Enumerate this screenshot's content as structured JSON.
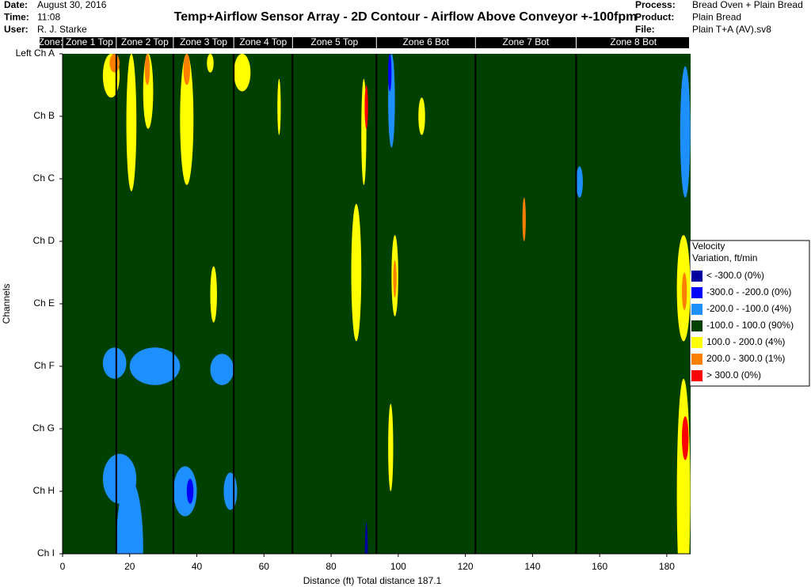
{
  "header": {
    "left": [
      {
        "key": "Date:",
        "value": "August 30, 2016"
      },
      {
        "key": "Time:",
        "value": "11:08"
      },
      {
        "key": "User:",
        "value": "R. J. Starke"
      }
    ],
    "right": [
      {
        "key": "Process:",
        "value": "Bread Oven + Plain Bread"
      },
      {
        "key": "Product:",
        "value": "Plain Bread"
      },
      {
        "key": "File:",
        "value": "Plain T+A (AV).sv8"
      }
    ]
  },
  "chart_data": {
    "type": "contour",
    "title": "Temp+Airflow Sensor Array - 2D Contour - Airflow Above Conveyor +-100fpm",
    "x_label": "Distance (ft) Total distance 187.1",
    "y_label": "Channels",
    "zone_label": "Zone:",
    "zones": [
      {
        "name": "Zone 1 Top",
        "start": 0,
        "end": 16
      },
      {
        "name": "Zone 2 Top",
        "start": 16,
        "end": 33
      },
      {
        "name": "Zone 3 Top",
        "start": 33,
        "end": 51
      },
      {
        "name": "Zone 4 Top",
        "start": 51,
        "end": 68.5
      },
      {
        "name": "Zone 5 Top",
        "start": 68.5,
        "end": 93.5
      },
      {
        "name": "Zone 6 Bot",
        "start": 93.5,
        "end": 123
      },
      {
        "name": "Zone 7 Bot",
        "start": 123,
        "end": 153
      },
      {
        "name": "Zone 8 Bot",
        "start": 153,
        "end": 187.1
      }
    ],
    "channels": [
      "Left Ch A",
      "Ch B",
      "Ch C",
      "Ch D",
      "Ch E",
      "Ch F",
      "Ch G",
      "Ch H",
      "Ch I"
    ],
    "xlim": [
      0,
      187.1
    ],
    "xticks": [
      0,
      20,
      40,
      60,
      80,
      100,
      120,
      140,
      160,
      180
    ],
    "background_color": "#004000",
    "legend": {
      "title": [
        "Velocity",
        "Variation, ft/min"
      ],
      "thresholds": [
        -300,
        -200,
        -100,
        100,
        200,
        300
      ],
      "items": [
        {
          "label": "< -300.0 (0%)",
          "color": "#0000a0"
        },
        {
          "label": "-300.0 - -200.0 (0%)",
          "color": "#0000ff"
        },
        {
          "label": "-200.0 - -100.0 (4%)",
          "color": "#1e8fff"
        },
        {
          "label": "-100.0 - 100.0 (90%)",
          "color": "#004000"
        },
        {
          "label": "100.0 - 200.0 (4%)",
          "color": "#ffff00"
        },
        {
          "label": "200.0 - 300.0 (1%)",
          "color": "#ff8000"
        },
        {
          "label": "> 300.0 (0%)",
          "color": "#ff0000"
        }
      ]
    },
    "regions": [
      {
        "x": [
          12,
          17
        ],
        "y": [
          0,
          0.7
        ],
        "value": 150
      },
      {
        "x": [
          14,
          17
        ],
        "y": [
          0,
          0.3
        ],
        "value": 250
      },
      {
        "x": [
          19,
          22
        ],
        "y": [
          0,
          2.2
        ],
        "value": 150
      },
      {
        "x": [
          24,
          27
        ],
        "y": [
          0,
          1.2
        ],
        "value": 150
      },
      {
        "x": [
          24.5,
          26
        ],
        "y": [
          0,
          0.5
        ],
        "value": 250
      },
      {
        "x": [
          35,
          39
        ],
        "y": [
          0,
          2.1
        ],
        "value": 150
      },
      {
        "x": [
          36,
          38
        ],
        "y": [
          0,
          0.5
        ],
        "value": 250
      },
      {
        "x": [
          51,
          56
        ],
        "y": [
          0,
          0.6
        ],
        "value": 150
      },
      {
        "x": [
          43,
          45
        ],
        "y": [
          0,
          0.3
        ],
        "value": 150
      },
      {
        "x": [
          64,
          65
        ],
        "y": [
          0.4,
          1.3
        ],
        "value": 150
      },
      {
        "x": [
          86,
          89
        ],
        "y": [
          2.4,
          4.6
        ],
        "value": 150
      },
      {
        "x": [
          89,
          90.5
        ],
        "y": [
          0.4,
          2.1
        ],
        "value": 150
      },
      {
        "x": [
          90,
          91
        ],
        "y": [
          0.5,
          1.2
        ],
        "value": 350
      },
      {
        "x": [
          97,
          99
        ],
        "y": [
          0,
          1.5
        ],
        "value": -150
      },
      {
        "x": [
          97,
          98
        ],
        "y": [
          0,
          0.6
        ],
        "value": -250
      },
      {
        "x": [
          98,
          100
        ],
        "y": [
          2.9,
          4.2
        ],
        "value": 150
      },
      {
        "x": [
          98.5,
          99.5
        ],
        "y": [
          3.3,
          3.9
        ],
        "value": 250
      },
      {
        "x": [
          106,
          108
        ],
        "y": [
          0.7,
          1.3
        ],
        "value": 150
      },
      {
        "x": [
          44,
          46
        ],
        "y": [
          3.4,
          4.3
        ],
        "value": 150
      },
      {
        "x": [
          12,
          19
        ],
        "y": [
          4.7,
          5.2
        ],
        "value": -150
      },
      {
        "x": [
          20,
          35
        ],
        "y": [
          4.7,
          5.3
        ],
        "value": -150
      },
      {
        "x": [
          44,
          51
        ],
        "y": [
          4.8,
          5.3
        ],
        "value": -150
      },
      {
        "x": [
          12,
          22
        ],
        "y": [
          6.4,
          7.2
        ],
        "value": -150
      },
      {
        "x": [
          16,
          24
        ],
        "y": [
          6.8,
          9
        ],
        "value": -150
      },
      {
        "x": [
          33,
          40
        ],
        "y": [
          6.6,
          7.4
        ],
        "value": -150
      },
      {
        "x": [
          37,
          39
        ],
        "y": [
          6.8,
          7.2
        ],
        "value": -250
      },
      {
        "x": [
          48,
          52
        ],
        "y": [
          6.7,
          7.3
        ],
        "value": -150
      },
      {
        "x": [
          90,
          91
        ],
        "y": [
          7.5,
          9
        ],
        "value": -350
      },
      {
        "x": [
          97,
          98.5
        ],
        "y": [
          5.6,
          7
        ],
        "value": 150
      },
      {
        "x": [
          184,
          187
        ],
        "y": [
          0.2,
          2.3
        ],
        "value": -150
      },
      {
        "x": [
          183,
          187
        ],
        "y": [
          2.9,
          4.6
        ],
        "value": 150
      },
      {
        "x": [
          184.5,
          186
        ],
        "y": [
          3.5,
          4.1
        ],
        "value": 250
      },
      {
        "x": [
          183,
          187
        ],
        "y": [
          5.2,
          8.9
        ],
        "value": 150
      },
      {
        "x": [
          184.5,
          186.5
        ],
        "y": [
          5.8,
          6.5
        ],
        "value": 350
      },
      {
        "x": [
          183,
          184
        ],
        "y": [
          8.6,
          9
        ],
        "value": -150
      },
      {
        "x": [
          137,
          138
        ],
        "y": [
          2.3,
          3
        ],
        "value": 250
      },
      {
        "x": [
          153,
          155
        ],
        "y": [
          1.8,
          2.3
        ],
        "value": -150
      }
    ]
  }
}
